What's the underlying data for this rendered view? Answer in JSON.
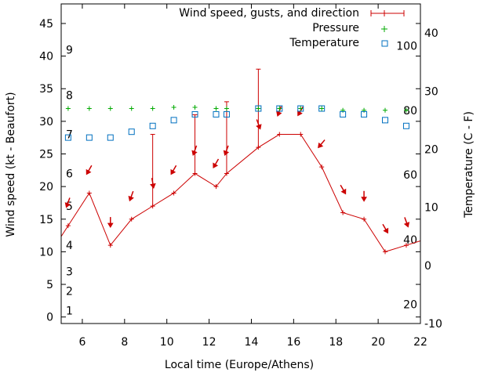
{
  "chart_data": {
    "type": "line",
    "xlabel": "Local time (Europe/Athens)",
    "ylabel": "Wind speed (kt - Beaufort)",
    "y2label": "Temperature (C - F)",
    "xlim": [
      5,
      22
    ],
    "ylim": [
      -1,
      48
    ],
    "y2lim": [
      -10,
      45
    ],
    "xticks": [
      6,
      8,
      10,
      12,
      14,
      16,
      18,
      20,
      22
    ],
    "yticks": [
      0,
      5,
      10,
      15,
      20,
      25,
      30,
      35,
      40,
      45
    ],
    "y2ticks": [
      -10,
      0,
      10,
      20,
      30,
      40
    ],
    "beaufort_labels": [
      {
        "label": "1",
        "kt": 1
      },
      {
        "label": "2",
        "kt": 4
      },
      {
        "label": "3",
        "kt": 7
      },
      {
        "label": "4",
        "kt": 11
      },
      {
        "label": "5",
        "kt": 17
      },
      {
        "label": "6",
        "kt": 22
      },
      {
        "label": "7",
        "kt": 28
      },
      {
        "label": "8",
        "kt": 34
      },
      {
        "label": "9",
        "kt": 41
      }
    ],
    "fahrenheit_labels": [
      {
        "label": "20",
        "c": -6.7
      },
      {
        "label": "40",
        "c": 4.4
      },
      {
        "label": "60",
        "c": 15.6
      },
      {
        "label": "80",
        "c": 26.7
      },
      {
        "label": "100",
        "c": 37.8
      }
    ],
    "legend": {
      "position": "top-right",
      "entries": [
        "Wind speed, gusts, and direction",
        "Pressure",
        "Temperature"
      ]
    },
    "colors": {
      "wind": "#cc0000",
      "pressure": "#00aa00",
      "temperature": "#0070c0"
    },
    "series": [
      {
        "name": "Wind speed, gusts, and direction",
        "x": [
          5.33,
          6.33,
          7.33,
          8.33,
          9.33,
          10.33,
          11.33,
          12.33,
          12.83,
          14.33,
          15.33,
          16.33,
          17.33,
          18.33,
          19.33,
          20.33,
          21.33
        ],
        "values": [
          14,
          19,
          11,
          15,
          17,
          19,
          22,
          20,
          22,
          26,
          28,
          28,
          23,
          16,
          15,
          10,
          11
        ],
        "gusts": [
          null,
          null,
          null,
          null,
          28,
          null,
          31,
          null,
          33,
          38,
          null,
          null,
          null,
          null,
          null,
          null,
          null
        ],
        "direction_deg": [
          20,
          30,
          0,
          20,
          350,
          30,
          20,
          30,
          20,
          340,
          20,
          30,
          40,
          330,
          0,
          330,
          340
        ]
      },
      {
        "name": "Pressure",
        "x": [
          5.33,
          6.33,
          7.33,
          8.33,
          9.33,
          10.33,
          11.33,
          12.33,
          12.83,
          14.33,
          15.33,
          16.33,
          17.33,
          18.33,
          19.33,
          20.33,
          21.33
        ],
        "values": [
          27,
          27,
          27,
          27,
          27,
          27.2,
          27.2,
          27,
          27,
          27,
          27,
          27,
          27,
          26.7,
          26.7,
          26.7,
          26.7
        ]
      },
      {
        "name": "Temperature",
        "x": [
          5.33,
          6.33,
          7.33,
          8.33,
          9.33,
          10.33,
          11.33,
          12.33,
          12.83,
          14.33,
          15.33,
          16.33,
          17.33,
          18.33,
          19.33,
          20.33,
          21.33
        ],
        "values": [
          22,
          22,
          22,
          23,
          24,
          25,
          26,
          26,
          26,
          27,
          27,
          27,
          27,
          26,
          26,
          25,
          24
        ]
      }
    ]
  }
}
